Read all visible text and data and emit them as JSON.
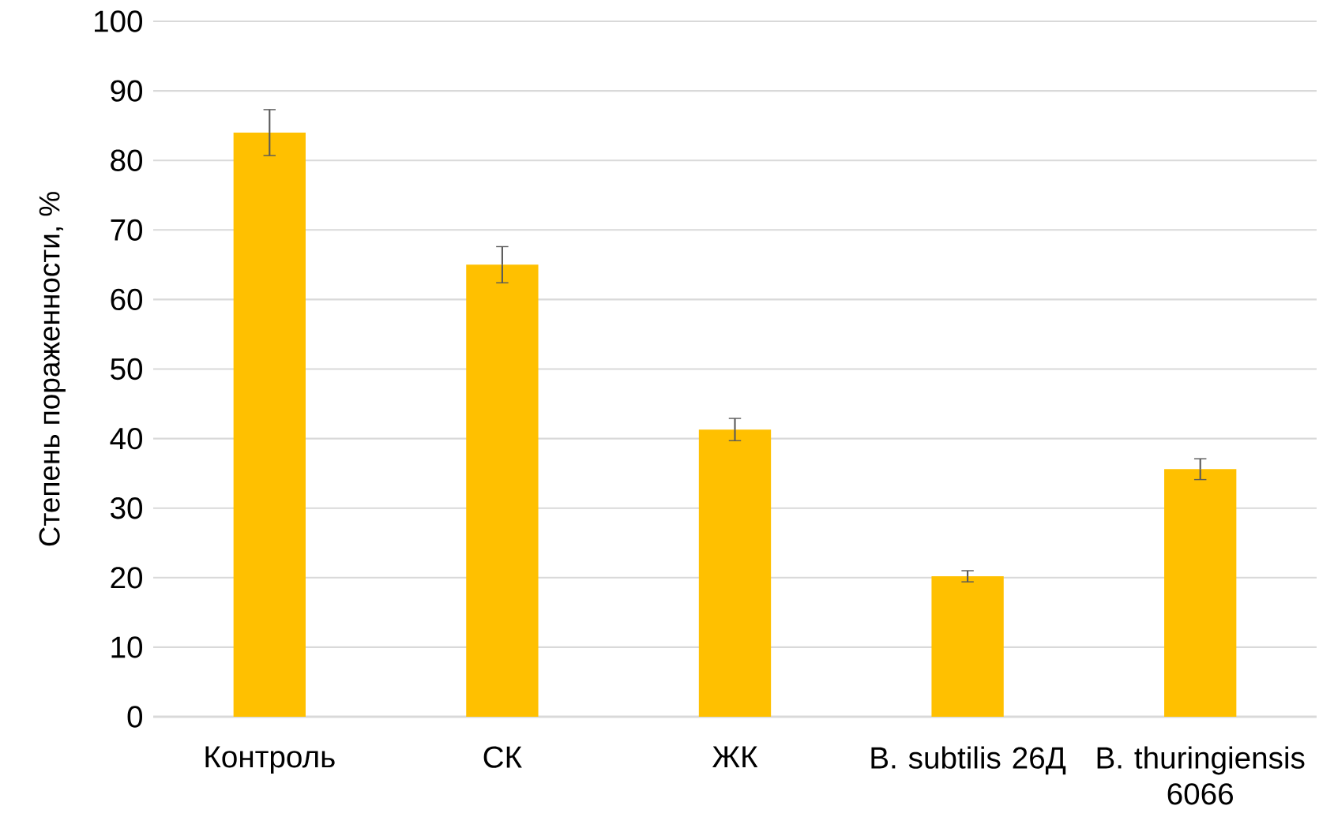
{
  "chart_data": {
    "type": "bar",
    "ylabel": "Степень пораженности, %",
    "categories": [
      "Контроль",
      "СК",
      "ЖК",
      "B. subtilis 26Д",
      "B. thuringiensis 6066"
    ],
    "values": [
      84,
      65,
      41.3,
      20.2,
      35.6
    ],
    "errors": [
      3.3,
      2.6,
      1.6,
      0.8,
      1.5
    ],
    "color": "#ffc000",
    "ylim": [
      0,
      100
    ],
    "yticks": [
      0,
      10,
      20,
      30,
      40,
      50,
      60,
      70,
      80,
      90,
      100
    ],
    "grid": "y"
  }
}
